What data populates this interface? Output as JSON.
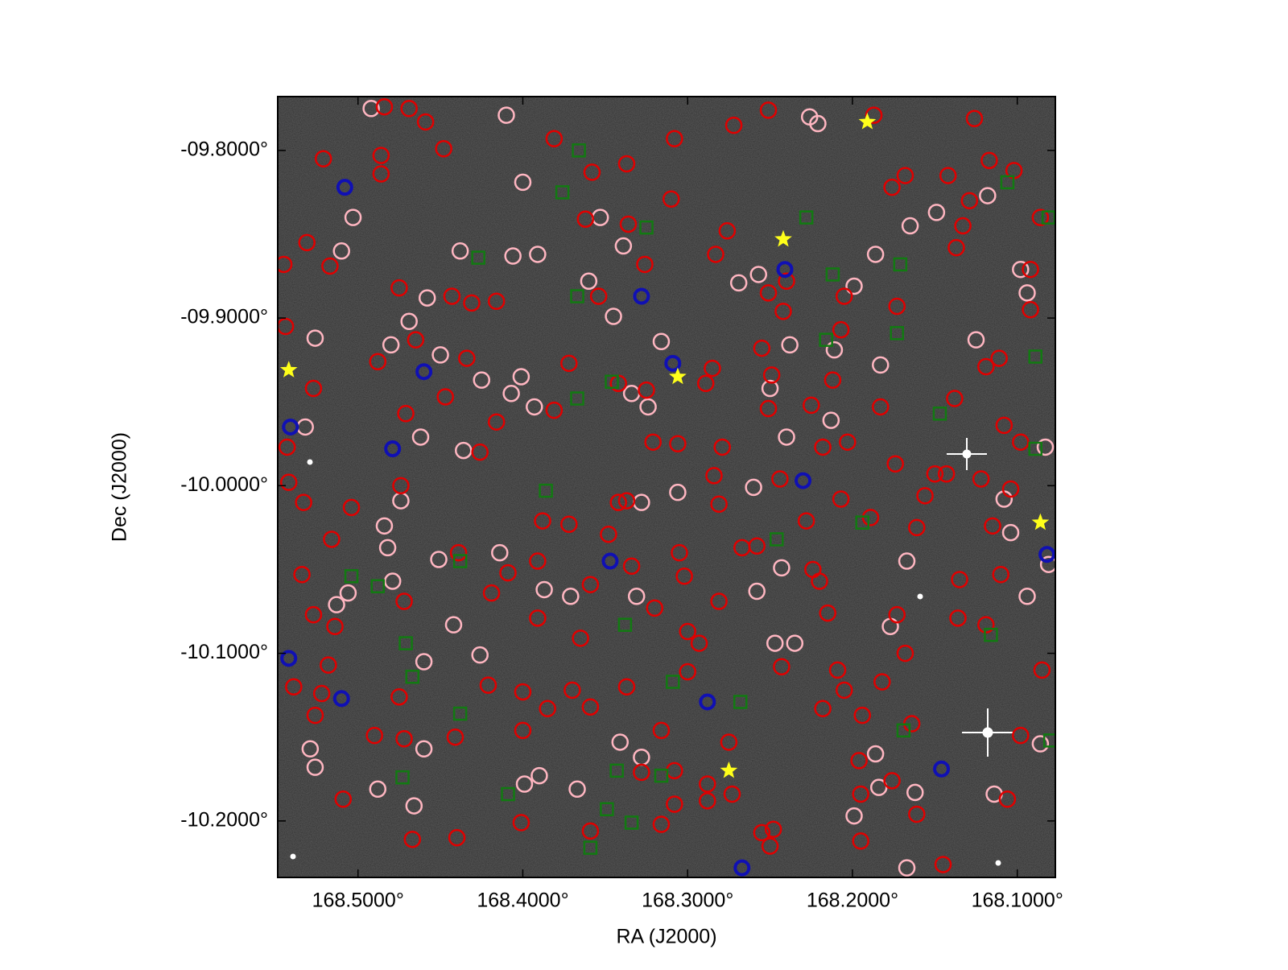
{
  "chart_data": {
    "type": "scatter",
    "xlabel": "RA (J2000)",
    "ylabel": "Dec (J2000)",
    "xlim": [
      168.5487,
      168.0769
    ],
    "ylim": [
      -10.2337,
      -9.7679
    ],
    "xticks": [
      {
        "value": 168.5,
        "label": "168.5000°"
      },
      {
        "value": 168.4,
        "label": "168.4000°"
      },
      {
        "value": 168.3,
        "label": "168.3000°"
      },
      {
        "value": 168.2,
        "label": "168.2000°"
      },
      {
        "value": 168.1,
        "label": "168.1000°"
      }
    ],
    "yticks": [
      {
        "value": -9.8,
        "label": "-09.8000°"
      },
      {
        "value": -9.9,
        "label": "-09.9000°"
      },
      {
        "value": -10.0,
        "label": "-10.0000°"
      },
      {
        "value": -10.1,
        "label": "-10.1000°"
      },
      {
        "value": -10.2,
        "label": "-10.2000°"
      }
    ],
    "series": [
      {
        "color": "#ffb6c1",
        "marker": "circle",
        "x": [
          168.492,
          168.41,
          168.503,
          168.51,
          168.438,
          168.406,
          168.391,
          168.458,
          168.48,
          168.45,
          168.469,
          168.526,
          168.532,
          168.462,
          168.425,
          168.407,
          168.401,
          168.393,
          168.436,
          168.4,
          168.353,
          168.339,
          168.36,
          168.345,
          168.324,
          168.316,
          168.334,
          168.306,
          168.328,
          168.331,
          168.371,
          168.387,
          168.426,
          168.442,
          168.46,
          168.506,
          168.513,
          168.479,
          168.482,
          168.484,
          168.474,
          168.414,
          168.451,
          168.529,
          168.526,
          168.488,
          168.466,
          168.46,
          168.341,
          168.328,
          168.367,
          168.39,
          168.399,
          168.26,
          168.257,
          168.269,
          168.243,
          168.24,
          168.25,
          168.238,
          168.211,
          168.213,
          168.199,
          168.186,
          168.183,
          168.165,
          168.149,
          168.125,
          168.118,
          168.098,
          168.094,
          168.108,
          168.104,
          168.094,
          168.081,
          168.167,
          168.177,
          168.186,
          168.184,
          168.162,
          168.167,
          168.199,
          168.114,
          168.086,
          168.226,
          168.221,
          168.247,
          168.235,
          168.258,
          168.083
        ],
        "values": [
          -9.775,
          -9.779,
          -9.84,
          -9.86,
          -9.86,
          -9.863,
          -9.862,
          -9.888,
          -9.916,
          -9.922,
          -9.902,
          -9.912,
          -9.965,
          -9.971,
          -9.937,
          -9.945,
          -9.935,
          -9.953,
          -9.979,
          -9.819,
          -9.84,
          -9.857,
          -9.878,
          -9.899,
          -9.953,
          -9.914,
          -9.945,
          -10.004,
          -10.01,
          -10.066,
          -10.066,
          -10.062,
          -10.101,
          -10.083,
          -10.105,
          -10.064,
          -10.071,
          -10.057,
          -10.037,
          -10.024,
          -10.009,
          -10.04,
          -10.044,
          -10.157,
          -10.168,
          -10.181,
          -10.191,
          -10.157,
          -10.153,
          -10.162,
          -10.181,
          -10.173,
          -10.178,
          -10.001,
          -9.874,
          -9.879,
          -10.049,
          -9.971,
          -9.942,
          -9.916,
          -9.919,
          -9.961,
          -9.881,
          -9.862,
          -9.928,
          -9.845,
          -9.837,
          -9.913,
          -9.827,
          -9.871,
          -9.885,
          -10.008,
          -10.028,
          -10.066,
          -10.047,
          -10.045,
          -10.084,
          -10.16,
          -10.18,
          -10.183,
          -10.228,
          -10.197,
          -10.184,
          -10.154,
          -9.78,
          -9.784,
          -10.094,
          -10.094,
          -10.063,
          -9.977
        ]
      },
      {
        "color": "#e00000",
        "marker": "circle",
        "x": [
          168.484,
          168.469,
          168.459,
          168.521,
          168.486,
          168.448,
          168.486,
          168.545,
          168.531,
          168.517,
          168.544,
          168.475,
          168.465,
          168.443,
          168.431,
          168.416,
          168.488,
          168.434,
          168.447,
          168.471,
          168.543,
          168.527,
          168.542,
          168.533,
          168.504,
          168.474,
          168.516,
          168.534,
          168.527,
          168.514,
          168.518,
          168.539,
          168.522,
          168.526,
          168.49,
          168.472,
          168.475,
          168.472,
          168.441,
          168.439,
          168.421,
          168.4,
          168.385,
          168.37,
          168.359,
          168.4,
          168.401,
          168.365,
          168.359,
          168.337,
          168.342,
          168.388,
          168.372,
          168.391,
          168.409,
          168.419,
          168.391,
          168.426,
          168.416,
          168.381,
          168.358,
          168.337,
          168.362,
          168.336,
          168.326,
          168.31,
          168.308,
          168.276,
          168.283,
          168.272,
          168.251,
          168.251,
          168.242,
          168.24,
          168.255,
          168.249,
          168.285,
          168.289,
          168.251,
          168.225,
          168.218,
          168.203,
          168.212,
          168.207,
          168.205,
          168.187,
          168.126,
          168.176,
          168.168,
          168.142,
          168.129,
          168.117,
          168.102,
          168.133,
          168.137,
          168.086,
          168.173,
          168.092,
          168.092,
          168.111,
          168.119,
          168.138,
          168.108,
          168.098,
          168.122,
          168.104,
          168.115,
          168.11,
          168.135,
          168.136,
          168.119,
          168.106,
          168.098,
          168.145,
          168.161,
          168.164,
          168.168,
          168.173,
          168.182,
          168.194,
          168.195,
          168.176,
          168.195,
          168.196,
          168.209,
          168.205,
          168.218,
          168.215,
          168.22,
          168.224,
          168.228,
          168.207,
          168.174,
          168.183,
          168.156,
          168.161,
          168.15,
          168.143,
          168.243,
          168.244,
          168.258,
          168.267,
          168.281,
          168.284,
          168.279,
          168.306,
          168.321,
          168.305,
          168.302,
          168.3,
          168.32,
          168.334,
          168.337,
          168.348,
          168.342,
          168.325,
          168.3,
          168.288,
          168.273,
          168.288,
          168.316,
          168.308,
          168.328,
          168.308,
          168.316,
          168.281,
          168.293,
          168.354,
          168.372,
          168.381,
          168.248,
          168.255,
          168.25,
          168.275,
          168.359,
          168.44,
          168.467,
          168.509,
          168.189,
          168.085
        ],
        "values": [
          -9.774,
          -9.775,
          -9.783,
          -9.805,
          -9.803,
          -9.799,
          -9.814,
          -9.868,
          -9.855,
          -9.869,
          -9.905,
          -9.882,
          -9.913,
          -9.887,
          -9.891,
          -9.89,
          -9.926,
          -9.924,
          -9.947,
          -9.957,
          -9.977,
          -9.942,
          -9.998,
          -10.01,
          -10.013,
          -10.0,
          -10.032,
          -10.053,
          -10.077,
          -10.084,
          -10.107,
          -10.12,
          -10.124,
          -10.137,
          -10.149,
          -10.151,
          -10.126,
          -10.069,
          -10.15,
          -10.04,
          -10.119,
          -10.123,
          -10.133,
          -10.122,
          -10.132,
          -10.146,
          -10.201,
          -10.091,
          -10.059,
          -10.12,
          -10.01,
          -10.021,
          -10.023,
          -10.045,
          -10.052,
          -10.064,
          -10.079,
          -9.98,
          -9.962,
          -9.793,
          -9.813,
          -9.808,
          -9.841,
          -9.844,
          -9.868,
          -9.829,
          -9.793,
          -9.848,
          -9.862,
          -9.785,
          -9.776,
          -9.885,
          -9.896,
          -9.878,
          -9.918,
          -9.934,
          -9.93,
          -9.939,
          -9.954,
          -9.952,
          -9.977,
          -9.974,
          -9.937,
          -9.907,
          -9.887,
          -9.779,
          -9.781,
          -9.822,
          -9.815,
          -9.815,
          -9.83,
          -9.806,
          -9.812,
          -9.845,
          -9.858,
          -9.84,
          -9.893,
          -9.871,
          -9.895,
          -9.924,
          -9.929,
          -9.948,
          -9.964,
          -9.974,
          -9.996,
          -10.002,
          -10.024,
          -10.053,
          -10.056,
          -10.079,
          -10.083,
          -10.187,
          -10.149,
          -10.226,
          -10.196,
          -10.142,
          -10.1,
          -10.077,
          -10.117,
          -10.137,
          -10.184,
          -10.176,
          -10.212,
          -10.164,
          -10.11,
          -10.122,
          -10.133,
          -10.076,
          -10.057,
          -10.05,
          -10.021,
          -10.008,
          -9.987,
          -9.953,
          -10.006,
          -10.025,
          -9.993,
          -9.993,
          -10.108,
          -9.996,
          -10.036,
          -10.037,
          -10.011,
          -9.994,
          -9.977,
          -9.975,
          -9.974,
          -10.04,
          -10.054,
          -10.087,
          -10.073,
          -10.048,
          -10.009,
          -10.029,
          -9.939,
          -9.943,
          -10.111,
          -10.178,
          -10.184,
          -10.188,
          -10.202,
          -10.19,
          -10.171,
          -10.17,
          -10.146,
          -10.069,
          -10.094,
          -9.887,
          -9.927,
          -9.955,
          -10.205,
          -10.207,
          -10.215,
          -10.153,
          -10.206,
          -10.21,
          -10.211,
          -10.187,
          -10.019,
          -10.11
        ]
      },
      {
        "color": "#127a12",
        "marker": "square",
        "x": [
          168.366,
          168.376,
          168.427,
          168.325,
          168.228,
          168.106,
          168.081,
          168.367,
          168.212,
          168.171,
          168.173,
          168.216,
          168.346,
          168.367,
          168.147,
          168.089,
          168.089,
          168.386,
          168.194,
          168.246,
          168.438,
          168.504,
          168.488,
          168.338,
          168.471,
          168.467,
          168.309,
          168.268,
          168.438,
          168.169,
          168.08,
          168.473,
          168.409,
          168.343,
          168.316,
          168.349,
          168.334,
          168.359,
          168.116
        ],
        "values": [
          -9.8,
          -9.825,
          -9.864,
          -9.846,
          -9.84,
          -9.819,
          -9.84,
          -9.887,
          -9.874,
          -9.868,
          -9.909,
          -9.913,
          -9.938,
          -9.948,
          -9.957,
          -9.923,
          -9.978,
          -10.003,
          -10.022,
          -10.032,
          -10.045,
          -10.054,
          -10.06,
          -10.083,
          -10.094,
          -10.114,
          -10.117,
          -10.129,
          -10.136,
          -10.146,
          -10.152,
          -10.174,
          -10.184,
          -10.17,
          -10.173,
          -10.193,
          -10.201,
          -10.216,
          -10.089
        ]
      },
      {
        "color": "#1010b4",
        "marker": "circle-bold",
        "x": [
          168.508,
          168.46,
          168.541,
          168.479,
          168.328,
          168.309,
          168.241,
          168.23,
          168.347,
          168.082,
          168.542,
          168.51,
          168.288,
          168.146,
          168.267
        ],
        "values": [
          -9.822,
          -9.932,
          -9.965,
          -9.978,
          -9.887,
          -9.927,
          -9.871,
          -9.997,
          -10.045,
          -10.041,
          -10.103,
          -10.127,
          -10.129,
          -10.169,
          -10.228
        ]
      },
      {
        "color": "#ffff1a",
        "marker": "star",
        "x": [
          168.191,
          168.242,
          168.542,
          168.306,
          168.086,
          168.275
        ],
        "values": [
          -9.783,
          -9.853,
          -9.931,
          -9.935,
          -10.022,
          -10.17
        ]
      }
    ]
  }
}
